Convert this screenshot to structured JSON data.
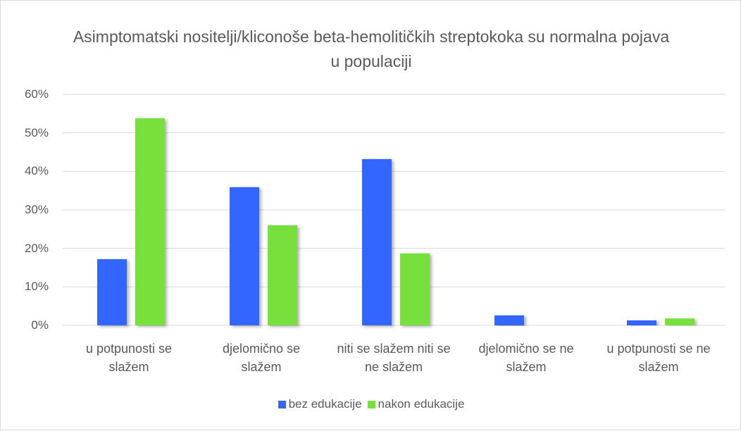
{
  "chart_data": {
    "type": "bar",
    "title": "Asimptomatski nositelji/kliconoše beta-hemolitičkih streptokoka su normalna pojava u populaciji",
    "categories": [
      "u potpunosti se slažem",
      "djelomično se slažem",
      "niti se slažem niti se ne slažem",
      "djelomično se ne slažem",
      "u potpunosti se ne slažem"
    ],
    "series": [
      {
        "name": "bez edukacije",
        "color": "#3366ff",
        "values": [
          17.2,
          35.9,
          43.2,
          2.6,
          1.3
        ]
      },
      {
        "name": "nakon edukacije",
        "color": "#77e03c",
        "values": [
          53.8,
          26.0,
          18.7,
          0,
          1.8
        ]
      }
    ],
    "ylim": [
      0,
      60
    ],
    "yticks": [
      {
        "value": 0,
        "label": "0%"
      },
      {
        "value": 10,
        "label": "10%"
      },
      {
        "value": 20,
        "label": "20%"
      },
      {
        "value": 30,
        "label": "30%"
      },
      {
        "value": 40,
        "label": "40%"
      },
      {
        "value": 50,
        "label": "50%"
      },
      {
        "value": 60,
        "label": "60%"
      }
    ],
    "grid": true,
    "legend": "bottom"
  }
}
